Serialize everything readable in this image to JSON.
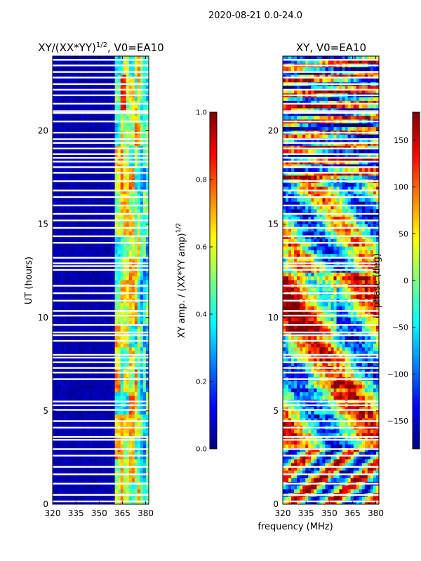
{
  "suptitle": "2020-08-21 0.0-24.0",
  "colors": {
    "jet": [
      "#00007f",
      "#0000ff",
      "#007fff",
      "#00ffff",
      "#7fff7f",
      "#ffff00",
      "#ff7f00",
      "#ff0000",
      "#7f0000"
    ],
    "gap": "#ffffff",
    "axis": "#000000"
  },
  "chart_data": [
    {
      "type": "heatmap",
      "title": "XY/(XX*YY)^{1/2}, V0=EA10",
      "title_main": "XY/(XX*YY)",
      "title_sup": "1/2",
      "title_tail": ", V0=EA10",
      "xlabel": "",
      "ylabel": "UT (hours)",
      "xlim": [
        320,
        382
      ],
      "ylim": [
        0,
        24
      ],
      "xticks": [
        320,
        335,
        350,
        365,
        380
      ],
      "yticks": [
        0,
        5,
        10,
        15,
        20
      ],
      "pattern": "amplitude",
      "colorbar": {
        "label": "XY amp. / (XX*YY amp)",
        "label_sup": "1/2",
        "range": [
          0.0,
          1.0
        ],
        "ticks": [
          "0.0",
          "0.2",
          "0.4",
          "0.6",
          "0.8",
          "1.0"
        ]
      }
    },
    {
      "type": "heatmap",
      "title": "XY, V0=EA10",
      "xlabel": "frequency (MHz)",
      "ylabel": "",
      "xlim": [
        320,
        382
      ],
      "ylim": [
        0,
        24
      ],
      "xticks": [
        320,
        335,
        350,
        365,
        380
      ],
      "yticks": [
        0,
        5,
        10,
        15,
        20
      ],
      "pattern": "phase",
      "colorbar": {
        "label": "phase (deg)",
        "range": [
          -180,
          180
        ],
        "ticks": [
          "−150",
          "−100",
          "−50",
          "0",
          "50",
          "100",
          "150"
        ],
        "tick_values": [
          -150,
          -100,
          -50,
          0,
          50,
          100,
          150
        ]
      }
    }
  ],
  "gaps_ut": [
    0.15,
    0.5,
    1.1,
    1.6,
    2.0,
    2.6,
    2.95,
    3.45,
    3.6,
    4.1,
    4.45,
    5.05,
    5.3,
    5.5,
    6.7,
    7.05,
    7.3,
    7.6,
    7.85,
    8.0,
    8.75,
    9.05,
    9.2,
    9.6,
    10.1,
    10.35,
    10.9,
    11.3,
    11.7,
    12.55,
    12.75,
    12.9,
    13.2,
    14.0,
    14.35,
    14.8,
    15.2,
    15.55,
    16.0,
    16.45,
    16.8,
    17.3,
    17.75,
    18.05,
    18.35,
    18.55,
    18.75,
    19.05,
    19.35,
    19.55,
    19.9,
    20.5,
    20.95,
    21.05,
    21.45,
    21.9,
    22.2,
    22.5,
    22.85,
    23.15,
    23.5,
    23.8
  ]
}
